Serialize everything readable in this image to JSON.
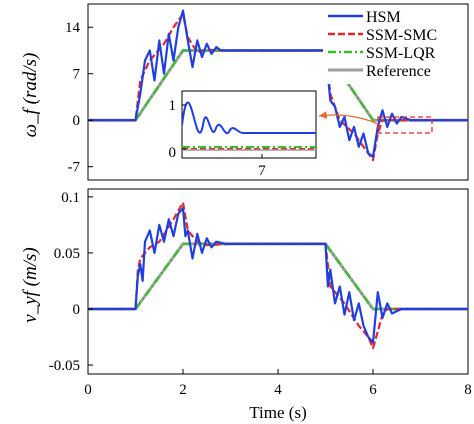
{
  "chart_data": [
    {
      "type": "line",
      "ylabel": "ω_f (rad/s)",
      "xlim": [
        0,
        8
      ],
      "ylim": [
        -9,
        17.5
      ],
      "yticks": [
        -7,
        0,
        7,
        14
      ],
      "grid": false,
      "legend_position": "top-right",
      "series": [
        {
          "name": "HSM",
          "color": "#1f3fe0",
          "style": "solid",
          "points": [
            [
              0,
              0
            ],
            [
              1,
              0
            ],
            [
              1.1,
              4
            ],
            [
              1.2,
              9
            ],
            [
              1.3,
              10.5
            ],
            [
              1.4,
              6
            ],
            [
              1.5,
              12
            ],
            [
              1.6,
              7
            ],
            [
              1.7,
              13
            ],
            [
              1.8,
              9
            ],
            [
              1.9,
              14
            ],
            [
              2.0,
              16.5
            ],
            [
              2.1,
              12
            ],
            [
              2.2,
              8
            ],
            [
              2.3,
              12
            ],
            [
              2.4,
              9.5
            ],
            [
              2.5,
              11.5
            ],
            [
              2.6,
              10
            ],
            [
              2.7,
              11
            ],
            [
              2.8,
              10.5
            ],
            [
              3,
              10.5
            ],
            [
              4.9,
              10.5
            ],
            [
              5.0,
              10.5
            ],
            [
              5.1,
              3
            ],
            [
              5.2,
              2
            ],
            [
              5.3,
              -1
            ],
            [
              5.4,
              0.5
            ],
            [
              5.5,
              -3
            ],
            [
              5.6,
              -1
            ],
            [
              5.7,
              -4
            ],
            [
              5.8,
              -2
            ],
            [
              5.9,
              -5
            ],
            [
              6.0,
              -5.5
            ],
            [
              6.1,
              -1
            ],
            [
              6.2,
              1.5
            ],
            [
              6.3,
              -1
            ],
            [
              6.4,
              1
            ],
            [
              6.5,
              -0.5
            ],
            [
              6.6,
              0.5
            ],
            [
              6.8,
              0
            ],
            [
              8,
              0
            ]
          ]
        },
        {
          "name": "SSM-SMC",
          "color": "#e8262a",
          "style": "dashed",
          "points": [
            [
              0,
              0
            ],
            [
              1,
              0
            ],
            [
              1.1,
              6
            ],
            [
              1.3,
              9
            ],
            [
              1.6,
              11.5
            ],
            [
              1.8,
              14
            ],
            [
              2.0,
              16
            ],
            [
              2.1,
              12.5
            ],
            [
              2.3,
              10.2
            ],
            [
              2.5,
              10.6
            ],
            [
              3,
              10.5
            ],
            [
              5,
              10.5
            ],
            [
              5.1,
              4
            ],
            [
              5.3,
              0
            ],
            [
              5.6,
              -2
            ],
            [
              5.9,
              -5
            ],
            [
              6.0,
              -6
            ],
            [
              6.1,
              -2
            ],
            [
              6.2,
              0
            ],
            [
              8,
              0
            ]
          ]
        },
        {
          "name": "SSM-LQR",
          "color": "#36c026",
          "style": "dashdot",
          "points": [
            [
              0,
              0
            ],
            [
              1,
              0
            ],
            [
              2,
              10.5
            ],
            [
              5,
              10.5
            ],
            [
              6,
              0
            ],
            [
              8,
              0
            ]
          ]
        },
        {
          "name": "Reference",
          "color": "#9e9e9e",
          "style": "solid",
          "points": [
            [
              0,
              0
            ],
            [
              1,
              0
            ],
            [
              2,
              10.5
            ],
            [
              5,
              10.5
            ],
            [
              6,
              0
            ],
            [
              8,
              0
            ]
          ]
        }
      ],
      "inset": {
        "xtick": "7",
        "yticks": [
          "0",
          "1"
        ]
      }
    },
    {
      "type": "line",
      "xlabel": "Time (s)",
      "ylabel": "v_yf (m/s)",
      "xlim": [
        0,
        8
      ],
      "ylim": [
        -0.058,
        0.107
      ],
      "xticks": [
        0,
        2,
        4,
        6,
        8
      ],
      "yticks": [
        -0.05,
        0,
        0.05,
        0.1
      ],
      "grid": false,
      "series": [
        {
          "name": "HSM",
          "color": "#1f3fe0",
          "style": "solid",
          "points": [
            [
              0,
              0
            ],
            [
              1,
              0
            ],
            [
              1.05,
              0.03
            ],
            [
              1.1,
              0.04
            ],
            [
              1.15,
              0.025
            ],
            [
              1.2,
              0.06
            ],
            [
              1.3,
              0.07
            ],
            [
              1.4,
              0.05
            ],
            [
              1.5,
              0.075
            ],
            [
              1.6,
              0.06
            ],
            [
              1.7,
              0.08
            ],
            [
              1.8,
              0.065
            ],
            [
              1.9,
              0.085
            ],
            [
              2.0,
              0.09
            ],
            [
              2.05,
              0.065
            ],
            [
              2.1,
              0.07
            ],
            [
              2.2,
              0.045
            ],
            [
              2.3,
              0.067
            ],
            [
              2.4,
              0.05
            ],
            [
              2.5,
              0.063
            ],
            [
              2.6,
              0.055
            ],
            [
              2.7,
              0.06
            ],
            [
              2.9,
              0.058
            ],
            [
              5.0,
              0.058
            ],
            [
              5.05,
              0.02
            ],
            [
              5.1,
              0.035
            ],
            [
              5.2,
              0.005
            ],
            [
              5.3,
              0.02
            ],
            [
              5.4,
              -0.005
            ],
            [
              5.5,
              0.015
            ],
            [
              5.6,
              -0.01
            ],
            [
              5.7,
              0.005
            ],
            [
              5.8,
              -0.015
            ],
            [
              5.9,
              -0.025
            ],
            [
              6.0,
              -0.03
            ],
            [
              6.1,
              0.015
            ],
            [
              6.2,
              -0.008
            ],
            [
              6.3,
              0.005
            ],
            [
              6.4,
              -0.004
            ],
            [
              6.6,
              0
            ],
            [
              8,
              0
            ]
          ]
        },
        {
          "name": "SSM-SMC",
          "color": "#e8262a",
          "style": "dashed",
          "points": [
            [
              0,
              0
            ],
            [
              1,
              0
            ],
            [
              1.05,
              0.035
            ],
            [
              1.1,
              0.045
            ],
            [
              1.3,
              0.055
            ],
            [
              1.5,
              0.06
            ],
            [
              1.8,
              0.08
            ],
            [
              2.0,
              0.095
            ],
            [
              2.1,
              0.07
            ],
            [
              2.3,
              0.06
            ],
            [
              2.5,
              0.057
            ],
            [
              3,
              0.058
            ],
            [
              5,
              0.058
            ],
            [
              5.1,
              0.02
            ],
            [
              5.4,
              0.005
            ],
            [
              5.7,
              -0.015
            ],
            [
              5.9,
              -0.025
            ],
            [
              6.0,
              -0.035
            ],
            [
              6.1,
              -0.02
            ],
            [
              6.2,
              -0.005
            ],
            [
              6.3,
              0
            ],
            [
              8,
              0
            ]
          ]
        },
        {
          "name": "SSM-LQR",
          "color": "#36c026",
          "style": "dashdot",
          "points": [
            [
              0,
              0
            ],
            [
              1,
              0
            ],
            [
              2,
              0.058
            ],
            [
              5,
              0.058
            ],
            [
              6,
              0
            ],
            [
              8,
              0
            ]
          ]
        },
        {
          "name": "Reference",
          "color": "#9e9e9e",
          "style": "solid",
          "points": [
            [
              0,
              0
            ],
            [
              1,
              0
            ],
            [
              2,
              0.058
            ],
            [
              5,
              0.058
            ],
            [
              6,
              0
            ],
            [
              8,
              0
            ]
          ]
        }
      ]
    }
  ],
  "axis_ticks": {
    "top_y": [
      "14",
      "7",
      "0",
      "-7"
    ],
    "bottom_y": [
      "0.1",
      "0.05",
      "0",
      "-0.05"
    ],
    "bottom_x": [
      "0",
      "2",
      "4",
      "6",
      "8"
    ]
  }
}
